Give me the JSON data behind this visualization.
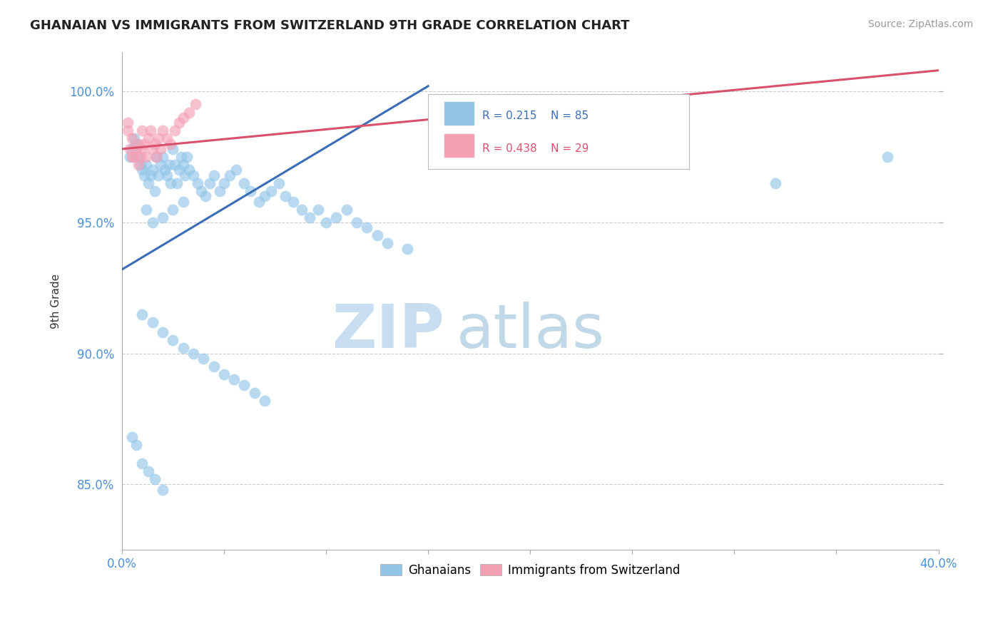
{
  "title": "GHANAIAN VS IMMIGRANTS FROM SWITZERLAND 9TH GRADE CORRELATION CHART",
  "source": "Source: ZipAtlas.com",
  "ylabel": "9th Grade",
  "xlim": [
    0.0,
    40.0
  ],
  "ylim": [
    82.5,
    101.5
  ],
  "yticks": [
    85.0,
    90.0,
    95.0,
    100.0
  ],
  "xticks": [
    0.0,
    5.0,
    10.0,
    15.0,
    20.0,
    25.0,
    30.0,
    35.0,
    40.0
  ],
  "blue_R": 0.215,
  "blue_N": 85,
  "pink_R": 0.438,
  "pink_N": 29,
  "blue_color": "#92C5E8",
  "pink_color": "#F4A0B4",
  "blue_line_color": "#3A6DB5",
  "pink_line_color": "#D9506A",
  "legend_blue_label": "Ghanaians",
  "legend_pink_label": "Immigrants from Switzerland",
  "watermark_zip": "ZIP",
  "watermark_atlas": "atlas",
  "watermark_color_zip": "#C8DEF0",
  "watermark_color_atlas": "#C0D8E8",
  "background_color": "#FFFFFF",
  "blue_trend_x0": 0.0,
  "blue_trend_y0": 93.2,
  "blue_trend_x1": 15.0,
  "blue_trend_y1": 100.2,
  "pink_trend_x0": 0.0,
  "pink_trend_y0": 97.8,
  "pink_trend_x1": 40.0,
  "pink_trend_y1": 100.8,
  "blue_x": [
    0.4,
    0.5,
    0.6,
    0.7,
    0.8,
    0.9,
    1.0,
    1.1,
    1.2,
    1.3,
    1.4,
    1.5,
    1.6,
    1.7,
    1.8,
    1.9,
    2.0,
    2.1,
    2.2,
    2.3,
    2.4,
    2.5,
    2.6,
    2.7,
    2.8,
    2.9,
    3.0,
    3.1,
    3.2,
    3.3,
    3.5,
    3.7,
    3.9,
    4.1,
    4.3,
    4.5,
    4.8,
    5.0,
    5.3,
    5.6,
    6.0,
    6.3,
    6.7,
    7.0,
    7.3,
    7.7,
    8.0,
    8.4,
    8.8,
    9.2,
    9.6,
    10.0,
    10.5,
    11.0,
    11.5,
    12.0,
    12.5,
    13.0,
    14.0,
    1.2,
    1.5,
    2.0,
    2.5,
    3.0,
    1.0,
    1.5,
    2.0,
    2.5,
    3.0,
    3.5,
    4.0,
    4.5,
    5.0,
    5.5,
    6.0,
    6.5,
    7.0,
    0.5,
    0.7,
    1.0,
    1.3,
    1.6,
    2.0,
    32.0,
    37.5
  ],
  "blue_y": [
    97.5,
    97.8,
    98.2,
    98.0,
    97.5,
    97.2,
    97.0,
    96.8,
    97.2,
    96.5,
    96.8,
    97.0,
    96.2,
    97.5,
    96.8,
    97.2,
    97.5,
    97.0,
    96.8,
    97.2,
    96.5,
    97.8,
    97.2,
    96.5,
    97.0,
    97.5,
    97.2,
    96.8,
    97.5,
    97.0,
    96.8,
    96.5,
    96.2,
    96.0,
    96.5,
    96.8,
    96.2,
    96.5,
    96.8,
    97.0,
    96.5,
    96.2,
    95.8,
    96.0,
    96.2,
    96.5,
    96.0,
    95.8,
    95.5,
    95.2,
    95.5,
    95.0,
    95.2,
    95.5,
    95.0,
    94.8,
    94.5,
    94.2,
    94.0,
    95.5,
    95.0,
    95.2,
    95.5,
    95.8,
    91.5,
    91.2,
    90.8,
    90.5,
    90.2,
    90.0,
    89.8,
    89.5,
    89.2,
    89.0,
    88.8,
    88.5,
    88.2,
    86.8,
    86.5,
    85.8,
    85.5,
    85.2,
    84.8,
    96.5,
    97.5
  ],
  "pink_x": [
    0.3,
    0.4,
    0.5,
    0.6,
    0.7,
    0.8,
    0.9,
    1.0,
    1.1,
    1.2,
    1.3,
    1.4,
    1.5,
    1.6,
    1.7,
    1.8,
    1.9,
    2.0,
    2.2,
    2.4,
    2.6,
    2.8,
    3.0,
    3.3,
    3.6,
    0.3,
    0.5,
    0.8,
    1.0
  ],
  "pink_y": [
    98.5,
    97.8,
    98.2,
    97.5,
    97.8,
    97.2,
    97.5,
    97.8,
    98.0,
    97.5,
    98.2,
    98.5,
    97.8,
    98.0,
    97.5,
    98.2,
    97.8,
    98.5,
    98.2,
    98.0,
    98.5,
    98.8,
    99.0,
    99.2,
    99.5,
    98.8,
    97.5,
    98.0,
    98.5
  ]
}
